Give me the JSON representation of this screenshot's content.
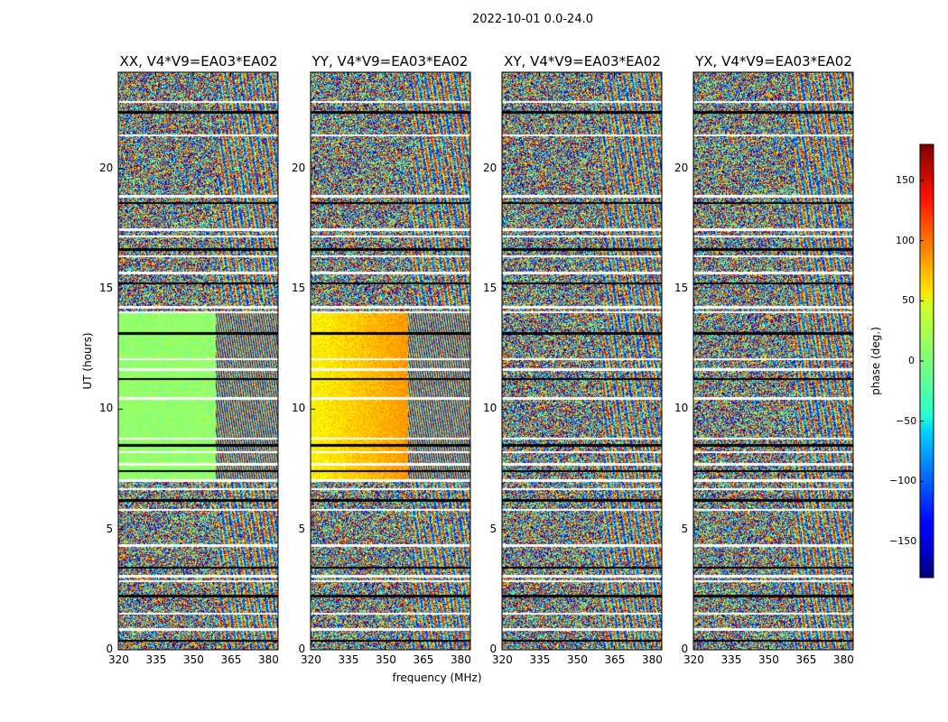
{
  "chart_data": {
    "type": "heatmap",
    "title": "2022-10-01 0.0-24.0",
    "xlabel": "frequency (MHz)",
    "ylabel": "UT (hours)",
    "x_ticks": [
      "320",
      "335",
      "350",
      "365",
      "380"
    ],
    "x_range": [
      320,
      384
    ],
    "y_ticks": [
      "0",
      "5",
      "10",
      "15",
      "20"
    ],
    "y_range": [
      0,
      24
    ],
    "panels": [
      {
        "title": "XX, V4*V9=EA03*EA02",
        "pol": "XX"
      },
      {
        "title": "YY, V4*V9=EA03*EA02",
        "pol": "YY"
      },
      {
        "title": "XY, V4*V9=EA03*EA02",
        "pol": "XY"
      },
      {
        "title": "YX, V4*V9=EA03*EA02",
        "pol": "YX"
      }
    ],
    "colorbar": {
      "label": "phase (deg.)",
      "range": [
        -180,
        180
      ],
      "ticks": [
        "150",
        "100",
        "50",
        "0",
        "−50",
        "−100",
        "−150"
      ],
      "tick_values": [
        150,
        100,
        50,
        0,
        -50,
        -100,
        -150
      ],
      "colormap": "jet"
    },
    "flagged_ut_hours": [
      0.4,
      0.9,
      1.55,
      2.3,
      2.9,
      3.1,
      3.45,
      4.4,
      5.85,
      6.25,
      6.7,
      7.1,
      7.45,
      7.75,
      8.25,
      8.55,
      8.8,
      10.5,
      11.3,
      11.7,
      12.1,
      13.2,
      14.05,
      14.3,
      15.25,
      15.7,
      16.4,
      16.7,
      17.2,
      17.5,
      18.6,
      18.9,
      21.4,
      22.4,
      22.8
    ]
  }
}
